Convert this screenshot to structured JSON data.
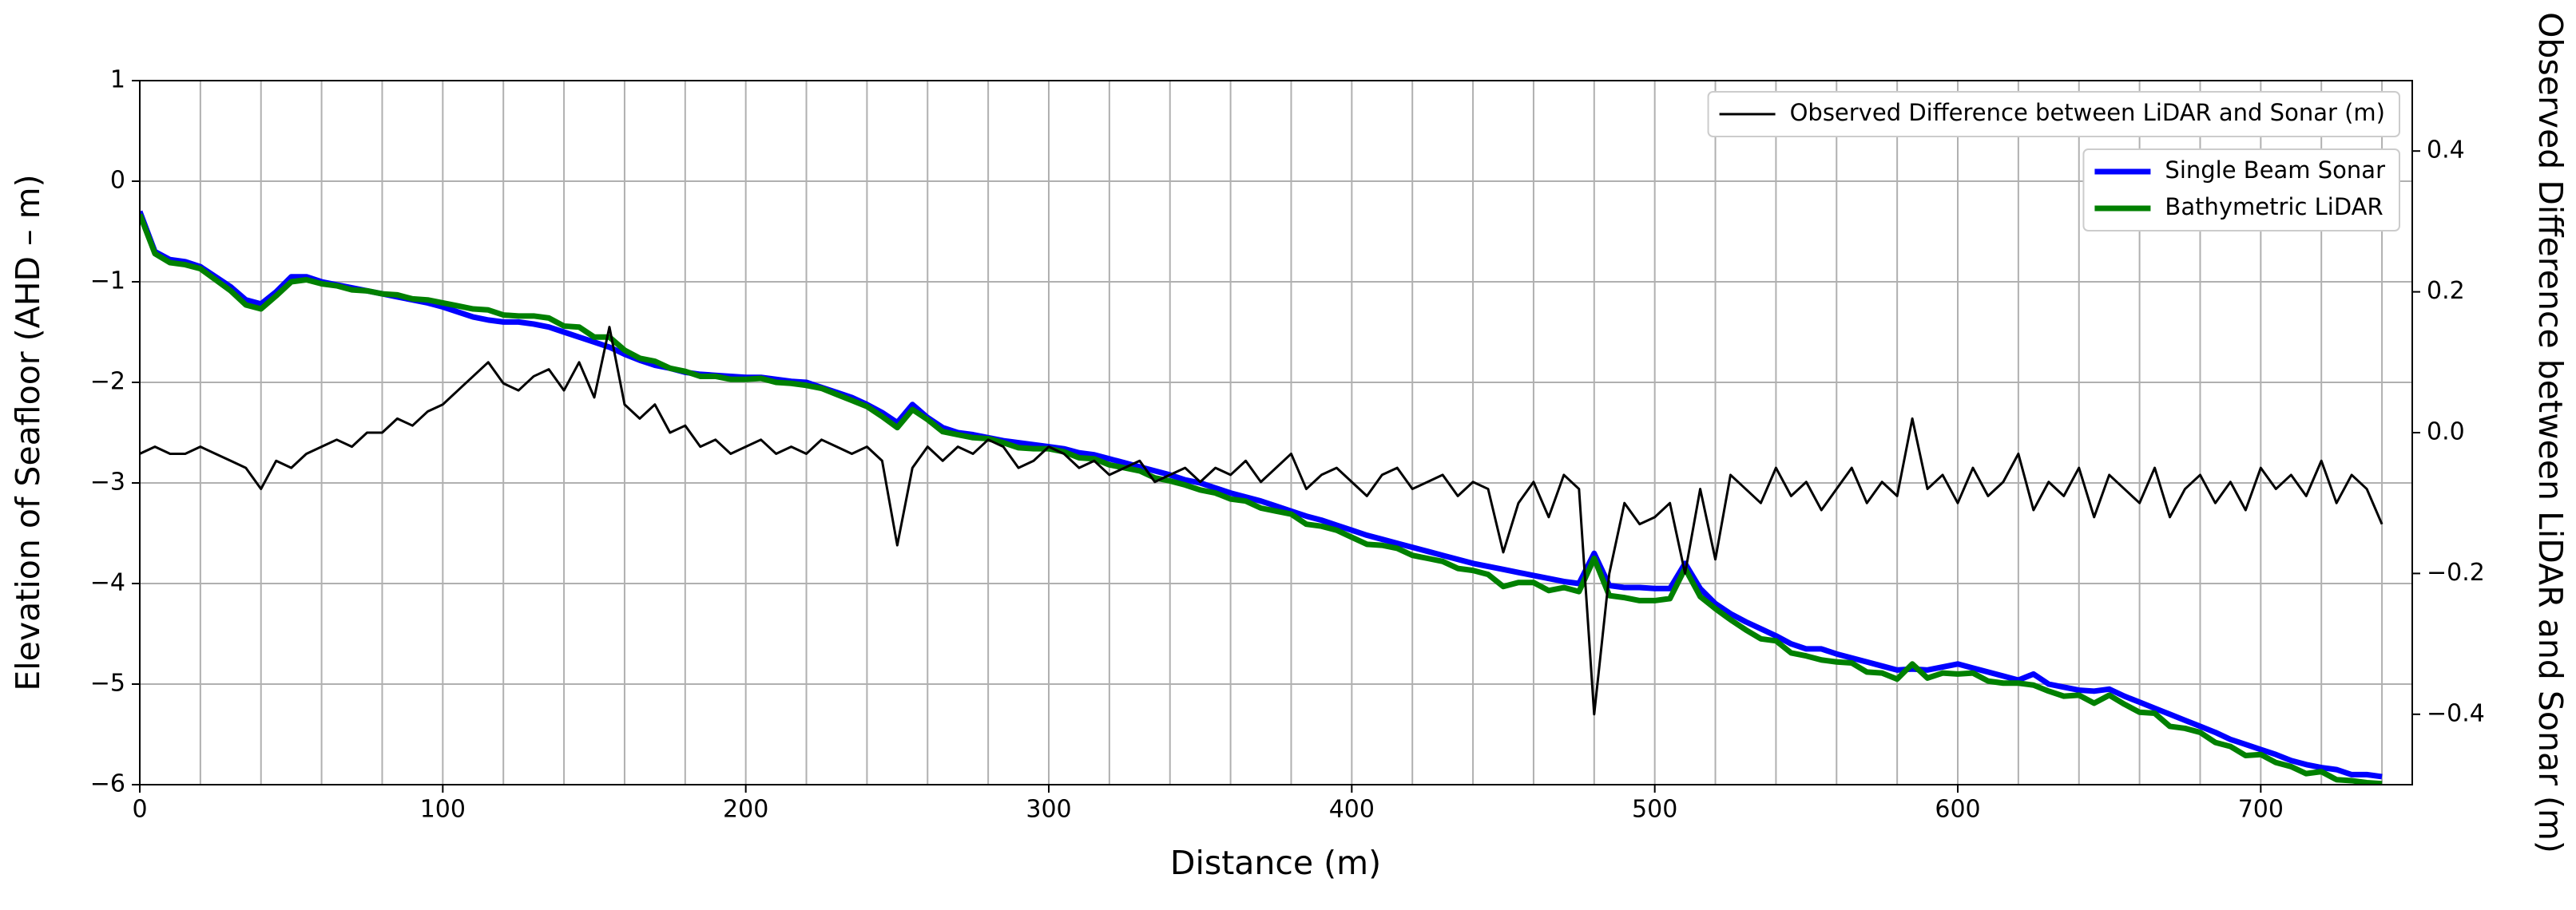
{
  "chart_data": {
    "type": "line",
    "xlabel": "Distance (m)",
    "ylabel": "Elevation of Seafloor (AHD – m)",
    "y2label": "Observed Difference between LiDAR and Sonar (m)",
    "xlim": [
      0,
      750
    ],
    "xticks": [
      0,
      100,
      200,
      300,
      400,
      500,
      600,
      700
    ],
    "xminorticks": [
      20,
      40,
      60,
      80,
      120,
      140,
      160,
      180,
      220,
      240,
      260,
      280,
      320,
      340,
      360,
      380,
      420,
      440,
      460,
      480,
      520,
      540,
      560,
      580,
      620,
      640,
      660,
      680,
      720,
      740
    ],
    "ylim": [
      -6,
      1
    ],
    "yticks": [
      {
        "value": -6,
        "label": "−6"
      },
      {
        "value": -5,
        "label": "−5"
      },
      {
        "value": -4,
        "label": "−4"
      },
      {
        "value": -3,
        "label": "−3"
      },
      {
        "value": -2,
        "label": "−2"
      },
      {
        "value": -1,
        "label": "−1"
      },
      0,
      1
    ],
    "y2lim": [
      -0.5,
      0.5
    ],
    "y2ticks": [
      {
        "value": -0.4,
        "label": "−0.4"
      },
      {
        "value": -0.2,
        "label": "−0.2"
      },
      {
        "value": 0,
        "label": "0.0"
      },
      0.2,
      0.4
    ],
    "grid": true,
    "legend": "upper right",
    "x": [
      0,
      5,
      10,
      15,
      20,
      25,
      30,
      35,
      40,
      45,
      50,
      55,
      60,
      65,
      70,
      75,
      80,
      85,
      90,
      95,
      100,
      105,
      110,
      115,
      120,
      125,
      130,
      135,
      140,
      145,
      150,
      155,
      160,
      165,
      170,
      175,
      180,
      185,
      190,
      195,
      200,
      205,
      210,
      215,
      220,
      225,
      230,
      235,
      240,
      245,
      250,
      255,
      260,
      265,
      270,
      275,
      280,
      285,
      290,
      295,
      300,
      305,
      310,
      315,
      320,
      325,
      330,
      335,
      340,
      345,
      350,
      355,
      360,
      365,
      370,
      375,
      380,
      385,
      390,
      395,
      400,
      405,
      410,
      415,
      420,
      425,
      430,
      435,
      440,
      445,
      450,
      455,
      460,
      465,
      470,
      475,
      480,
      485,
      490,
      495,
      500,
      505,
      510,
      515,
      520,
      525,
      530,
      535,
      540,
      545,
      550,
      555,
      560,
      565,
      570,
      575,
      580,
      585,
      590,
      595,
      600,
      605,
      610,
      615,
      620,
      625,
      630,
      635,
      640,
      645,
      650,
      655,
      660,
      665,
      670,
      675,
      680,
      685,
      690,
      695,
      700,
      705,
      710,
      715,
      720,
      725,
      730,
      735,
      740
    ],
    "series": [
      {
        "name": "Single Beam Sonar",
        "color": "#0000ff",
        "values": [
          -0.3,
          -0.7,
          -0.78,
          -0.8,
          -0.85,
          -0.95,
          -1.05,
          -1.18,
          -1.22,
          -1.1,
          -0.95,
          -0.95,
          -1.0,
          -1.03,
          -1.06,
          -1.09,
          -1.12,
          -1.15,
          -1.18,
          -1.21,
          -1.25,
          -1.3,
          -1.35,
          -1.38,
          -1.4,
          -1.4,
          -1.42,
          -1.45,
          -1.5,
          -1.55,
          -1.6,
          -1.65,
          -1.72,
          -1.78,
          -1.83,
          -1.86,
          -1.9,
          -1.92,
          -1.93,
          -1.94,
          -1.95,
          -1.95,
          -1.97,
          -1.99,
          -2.0,
          -2.05,
          -2.1,
          -2.15,
          -2.22,
          -2.3,
          -2.4,
          -2.22,
          -2.35,
          -2.45,
          -2.5,
          -2.52,
          -2.55,
          -2.58,
          -2.6,
          -2.62,
          -2.64,
          -2.66,
          -2.7,
          -2.72,
          -2.76,
          -2.8,
          -2.84,
          -2.88,
          -2.92,
          -2.97,
          -3.0,
          -3.05,
          -3.1,
          -3.14,
          -3.18,
          -3.23,
          -3.28,
          -3.33,
          -3.37,
          -3.42,
          -3.47,
          -3.52,
          -3.56,
          -3.6,
          -3.64,
          -3.68,
          -3.72,
          -3.76,
          -3.8,
          -3.83,
          -3.86,
          -3.89,
          -3.92,
          -3.95,
          -3.98,
          -4.0,
          -3.7,
          -4.02,
          -4.04,
          -4.04,
          -4.05,
          -4.05,
          -3.8,
          -4.05,
          -4.2,
          -4.3,
          -4.38,
          -4.45,
          -4.52,
          -4.6,
          -4.65,
          -4.65,
          -4.7,
          -4.74,
          -4.78,
          -4.82,
          -4.86,
          -4.85,
          -4.86,
          -4.83,
          -4.8,
          -4.84,
          -4.88,
          -4.92,
          -4.96,
          -4.9,
          -5.0,
          -5.03,
          -5.06,
          -5.07,
          -5.05,
          -5.12,
          -5.18,
          -5.24,
          -5.3,
          -5.36,
          -5.42,
          -5.48,
          -5.55,
          -5.6,
          -5.65,
          -5.7,
          -5.76,
          -5.8,
          -5.83,
          -5.85,
          -5.9,
          -5.9,
          -5.92
        ]
      },
      {
        "name": "Bathymetric LiDAR",
        "color": "#008000",
        "values": [
          -0.33,
          -0.72,
          -0.81,
          -0.83,
          -0.87,
          -0.98,
          -1.09,
          -1.23,
          -1.27,
          -1.14,
          -1.0,
          -0.98,
          -1.02,
          -1.04,
          -1.08,
          -1.09,
          -1.12,
          -1.13,
          -1.17,
          -1.18,
          -1.21,
          -1.24,
          -1.27,
          -1.28,
          -1.33,
          -1.34,
          -1.34,
          -1.36,
          -1.44,
          -1.45,
          -1.55,
          -1.55,
          -1.68,
          -1.76,
          -1.79,
          -1.86,
          -1.89,
          -1.94,
          -1.94,
          -1.97,
          -1.97,
          -1.96,
          -2.0,
          -2.01,
          -2.03,
          -2.06,
          -2.12,
          -2.18,
          -2.24,
          -2.34,
          -2.45,
          -2.27,
          -2.37,
          -2.49,
          -2.52,
          -2.55,
          -2.56,
          -2.6,
          -2.65,
          -2.66,
          -2.66,
          -2.69,
          -2.75,
          -2.76,
          -2.82,
          -2.85,
          -2.88,
          -2.95,
          -2.98,
          -3.02,
          -3.07,
          -3.1,
          -3.16,
          -3.18,
          -3.25,
          -3.28,
          -3.31,
          -3.41,
          -3.43,
          -3.47,
          -3.54,
          -3.61,
          -3.62,
          -3.65,
          -3.72,
          -3.75,
          -3.78,
          -3.85,
          -3.87,
          -3.91,
          -4.03,
          -3.99,
          -3.99,
          -4.07,
          -4.04,
          -4.08,
          -3.75,
          -4.12,
          -4.14,
          -4.17,
          -4.17,
          -4.15,
          -3.85,
          -4.13,
          -4.25,
          -4.36,
          -4.46,
          -4.55,
          -4.57,
          -4.69,
          -4.72,
          -4.76,
          -4.78,
          -4.79,
          -4.88,
          -4.89,
          -4.95,
          -4.8,
          -4.94,
          -4.89,
          -4.9,
          -4.89,
          -4.97,
          -4.99,
          -4.99,
          -5.01,
          -5.07,
          -5.12,
          -5.11,
          -5.19,
          -5.11,
          -5.2,
          -5.28,
          -5.29,
          -5.42,
          -5.44,
          -5.48,
          -5.58,
          -5.62,
          -5.71,
          -5.7,
          -5.78,
          -5.82,
          -5.89,
          -5.87,
          -5.95,
          -5.96,
          -5.98,
          -5.99
        ]
      },
      {
        "name": "Observed Difference between LiDAR and Sonar (m)",
        "color": "#000000",
        "axis": "y2",
        "values": [
          -0.03,
          -0.02,
          -0.03,
          -0.03,
          -0.02,
          -0.03,
          -0.04,
          -0.05,
          -0.08,
          -0.04,
          -0.05,
          -0.03,
          -0.02,
          -0.01,
          -0.02,
          0.0,
          0.0,
          0.02,
          0.01,
          0.03,
          0.04,
          0.06,
          0.08,
          0.1,
          0.07,
          0.06,
          0.08,
          0.09,
          0.06,
          0.1,
          0.05,
          0.15,
          0.04,
          0.02,
          0.04,
          0.0,
          0.01,
          -0.02,
          -0.01,
          -0.03,
          -0.02,
          -0.01,
          -0.03,
          -0.02,
          -0.03,
          -0.01,
          -0.02,
          -0.03,
          -0.02,
          -0.04,
          -0.16,
          -0.05,
          -0.02,
          -0.04,
          -0.02,
          -0.03,
          -0.01,
          -0.02,
          -0.05,
          -0.04,
          -0.02,
          -0.03,
          -0.05,
          -0.04,
          -0.06,
          -0.05,
          -0.04,
          -0.07,
          -0.06,
          -0.05,
          -0.07,
          -0.05,
          -0.06,
          -0.04,
          -0.07,
          -0.05,
          -0.03,
          -0.08,
          -0.06,
          -0.05,
          -0.07,
          -0.09,
          -0.06,
          -0.05,
          -0.08,
          -0.07,
          -0.06,
          -0.09,
          -0.07,
          -0.08,
          -0.17,
          -0.1,
          -0.07,
          -0.12,
          -0.06,
          -0.08,
          -0.4,
          -0.2,
          -0.1,
          -0.13,
          -0.12,
          -0.1,
          -0.2,
          -0.08,
          -0.18,
          -0.06,
          -0.08,
          -0.1,
          -0.05,
          -0.09,
          -0.07,
          -0.11,
          -0.08,
          -0.05,
          -0.1,
          -0.07,
          -0.09,
          0.02,
          -0.08,
          -0.06,
          -0.1,
          -0.05,
          -0.09,
          -0.07,
          -0.03,
          -0.11,
          -0.07,
          -0.09,
          -0.05,
          -0.12,
          -0.06,
          -0.08,
          -0.1,
          -0.05,
          -0.12,
          -0.08,
          -0.06,
          -0.1,
          -0.07,
          -0.11,
          -0.05,
          -0.08,
          -0.06,
          -0.09,
          -0.04,
          -0.1,
          -0.06,
          -0.08,
          -0.13
        ]
      }
    ]
  }
}
